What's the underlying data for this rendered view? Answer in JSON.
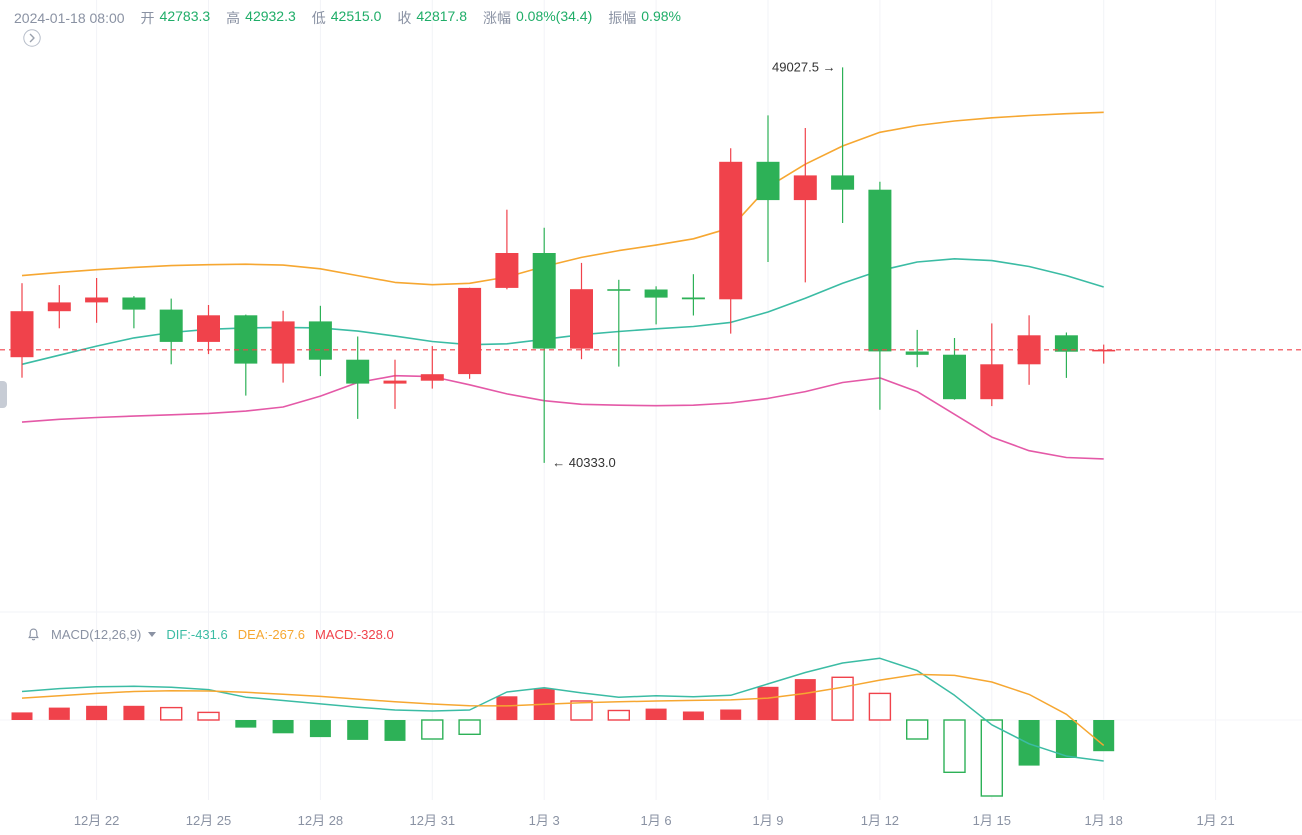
{
  "header": {
    "time": "2024-01-18 08:00",
    "fields": [
      {
        "label": "开",
        "value": "42783.3"
      },
      {
        "label": "高",
        "value": "42932.3"
      },
      {
        "label": "低",
        "value": "42515.0"
      },
      {
        "label": "收",
        "value": "42817.8"
      },
      {
        "label": "涨幅",
        "value": "0.08%(34.4)"
      },
      {
        "label": "振幅",
        "value": "0.98%"
      }
    ]
  },
  "macd_header": {
    "title": "MACD(12,26,9)",
    "dif_label": "DIF:-431.6",
    "dea_label": "DEA:-267.6",
    "macd_label": "MACD:-328.0"
  },
  "colors": {
    "red": "#F0424B",
    "green": "#2DB157",
    "header_green": "#1FAD68",
    "orange": "#F6A731",
    "teal": "#3BBCA4",
    "magenta": "#E459A7",
    "gray": "#8A92A3",
    "dark": "#333333",
    "grid": "#F2F3F7"
  },
  "chart_data": {
    "type": "candlestick",
    "title": "BTC daily K-line with BOLL bands and MACD",
    "convention": "red = up, green = down",
    "price_axis": {
      "min": 40000,
      "max": 49300,
      "grid": "off",
      "labels_visible": false
    },
    "last_close": 42817.8,
    "annotations": {
      "high": {
        "price": 49027.5,
        "label": "49027.5 →",
        "candle_index": 22
      },
      "low": {
        "price": 40333.0,
        "label": "← 40333.0",
        "candle_index": 14
      }
    },
    "dates": [
      "12-20",
      "12-21",
      "12-22",
      "12-23",
      "12-24",
      "12-25",
      "12-26",
      "12-27",
      "12-28",
      "12-29",
      "12-30",
      "12-31",
      "01-01",
      "01-02",
      "01-03",
      "01-04",
      "01-05",
      "01-06",
      "01-07",
      "01-08",
      "01-09",
      "01-10",
      "01-11",
      "01-12",
      "01-13",
      "01-14",
      "01-15",
      "01-16",
      "01-17",
      "01-18"
    ],
    "candles": [
      [
        42657,
        44283,
        42206,
        43668
      ],
      [
        43668,
        44242,
        43291,
        43861
      ],
      [
        43861,
        44398,
        43413,
        43969
      ],
      [
        43969,
        44000,
        43291,
        43702
      ],
      [
        43702,
        43945,
        42500,
        42991
      ],
      [
        42991,
        43804,
        42725,
        43576
      ],
      [
        43576,
        43592,
        41811,
        42514
      ],
      [
        42514,
        43677,
        42098,
        43442
      ],
      [
        43442,
        43787,
        42241,
        42600
      ],
      [
        42600,
        43111,
        41300,
        42074
      ],
      [
        42074,
        42600,
        41520,
        42141
      ],
      [
        42141,
        42899,
        41965,
        42283
      ],
      [
        42283,
        44184,
        42180,
        44179
      ],
      [
        44179,
        45899,
        44148,
        44946
      ],
      [
        44946,
        45500,
        40333,
        42845
      ],
      [
        42845,
        44729,
        42613,
        44151
      ],
      [
        44151,
        44357,
        42450,
        44145
      ],
      [
        44145,
        44215,
        43377,
        43968
      ],
      [
        43968,
        44480,
        43572,
        43929
      ],
      [
        43929,
        47248,
        43175,
        46951
      ],
      [
        46951,
        47972,
        44748,
        46110
      ],
      [
        46110,
        47695,
        44300,
        46653
      ],
      [
        46653,
        49027.5,
        45606,
        46338
      ],
      [
        46338,
        46515,
        41500,
        42782
      ],
      [
        42782,
        43257,
        42437,
        42710
      ],
      [
        42710,
        43079,
        41720,
        41732
      ],
      [
        41732,
        43400,
        41580,
        42499
      ],
      [
        42499,
        43578,
        42050,
        43137
      ],
      [
        43137,
        43198,
        42200,
        42776
      ],
      [
        42783.3,
        42932.3,
        42515.0,
        42817.8
      ]
    ],
    "boll": {
      "upper": [
        44450,
        44520,
        44580,
        44630,
        44670,
        44690,
        44700,
        44680,
        44600,
        44450,
        44300,
        44250,
        44280,
        44420,
        44650,
        44850,
        45000,
        45120,
        45260,
        45500,
        46400,
        46900,
        47300,
        47600,
        47750,
        47850,
        47920,
        47970,
        48010,
        48040
      ],
      "middle": [
        42500,
        42700,
        42900,
        43080,
        43200,
        43270,
        43300,
        43310,
        43300,
        43230,
        43120,
        43000,
        42930,
        42950,
        43050,
        43150,
        43220,
        43280,
        43330,
        43420,
        43650,
        43950,
        44280,
        44560,
        44750,
        44820,
        44780,
        44650,
        44450,
        44200
      ],
      "lower": [
        41228,
        41290,
        41330,
        41360,
        41390,
        41420,
        41470,
        41560,
        41800,
        42100,
        42250,
        42230,
        42050,
        41850,
        41700,
        41620,
        41600,
        41590,
        41600,
        41650,
        41750,
        41900,
        42100,
        42200,
        41900,
        41400,
        40900,
        40600,
        40450,
        40420
      ]
    },
    "macd": {
      "params": [
        12,
        26,
        9
      ],
      "dif": [
        300,
        330,
        350,
        355,
        345,
        320,
        240,
        205,
        170,
        135,
        105,
        95,
        105,
        295,
        340,
        285,
        240,
        255,
        245,
        260,
        380,
        500,
        600,
        650,
        520,
        260,
        -50,
        -250,
        -380,
        -431.6
      ],
      "dea": [
        230,
        255,
        280,
        300,
        308,
        305,
        292,
        272,
        248,
        220,
        192,
        168,
        150,
        148,
        165,
        182,
        192,
        200,
        206,
        212,
        230,
        280,
        345,
        420,
        480,
        470,
        400,
        270,
        60,
        -267.6
      ],
      "hist": [
        80,
        130,
        150,
        150,
        130,
        80,
        -80,
        -140,
        -180,
        -210,
        -220,
        -200,
        -150,
        250,
        330,
        200,
        100,
        120,
        90,
        110,
        350,
        430,
        450,
        280,
        -200,
        -550,
        -800,
        -480,
        -400,
        -328
      ],
      "hollow": [
        false,
        false,
        false,
        false,
        true,
        true,
        false,
        false,
        false,
        false,
        false,
        true,
        true,
        false,
        false,
        true,
        true,
        false,
        false,
        false,
        false,
        false,
        true,
        true,
        true,
        true,
        true,
        false,
        false,
        false
      ],
      "last": {
        "dif": -431.6,
        "dea": -267.6,
        "macd": -328.0
      }
    },
    "x_axis_labels": [
      {
        "index": 2,
        "label": "12月 22"
      },
      {
        "index": 5,
        "label": "12月 25"
      },
      {
        "index": 8,
        "label": "12月 28"
      },
      {
        "index": 11,
        "label": "12月 31"
      },
      {
        "index": 14,
        "label": "1月 3"
      },
      {
        "index": 17,
        "label": "1月 6"
      },
      {
        "index": 20,
        "label": "1月 9"
      },
      {
        "index": 23,
        "label": "1月 12"
      },
      {
        "index": 26,
        "label": "1月 15"
      },
      {
        "index": 29,
        "label": "1月 18"
      },
      {
        "index": 32,
        "label": "1月 21"
      }
    ]
  }
}
